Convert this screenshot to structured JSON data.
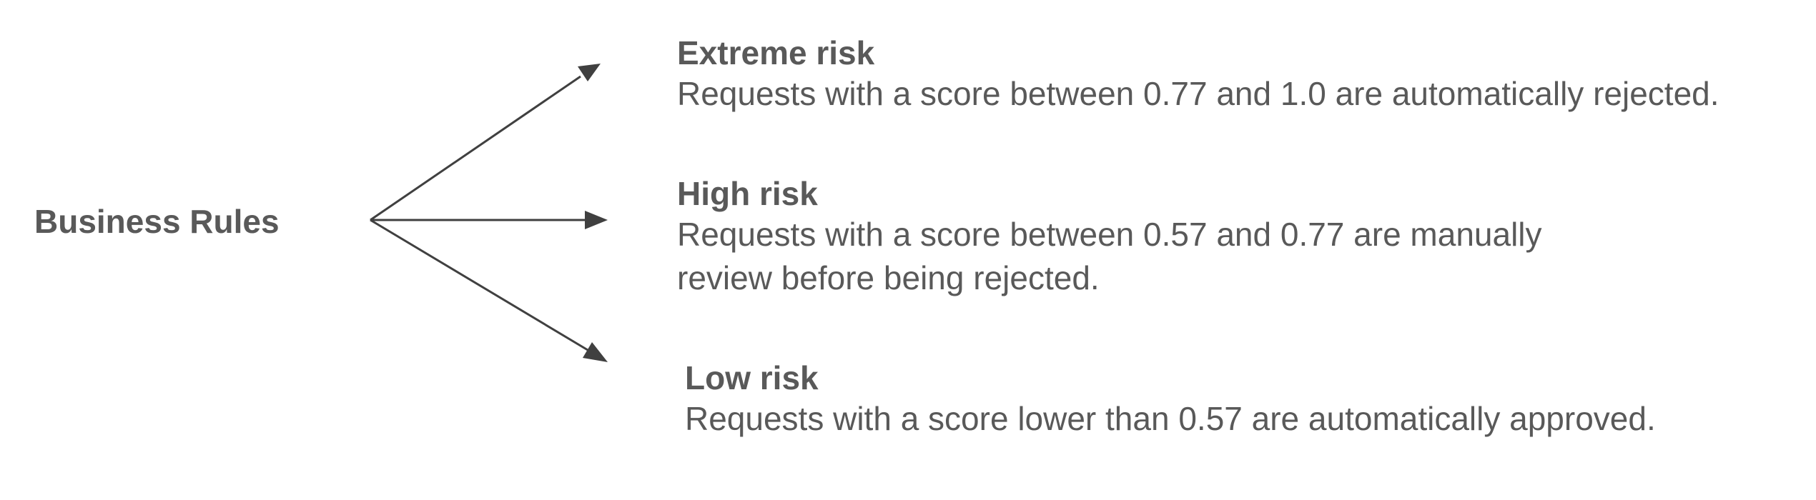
{
  "diagram": {
    "root_label": "Business Rules",
    "rules": [
      {
        "title": "Extreme risk",
        "description_lines": [
          "Requests with a score between 0.77 and 1.0 are automatically rejected."
        ]
      },
      {
        "title": "High risk",
        "description_lines": [
          "Requests with a score between 0.57 and 0.77 are manually",
          "review before being rejected."
        ]
      },
      {
        "title": "Low risk",
        "description_lines": [
          "Requests with a score lower than 0.57 are automatically approved."
        ]
      }
    ],
    "colors": {
      "text": "#595959",
      "arrow": "#404040",
      "background": "#ffffff"
    }
  }
}
